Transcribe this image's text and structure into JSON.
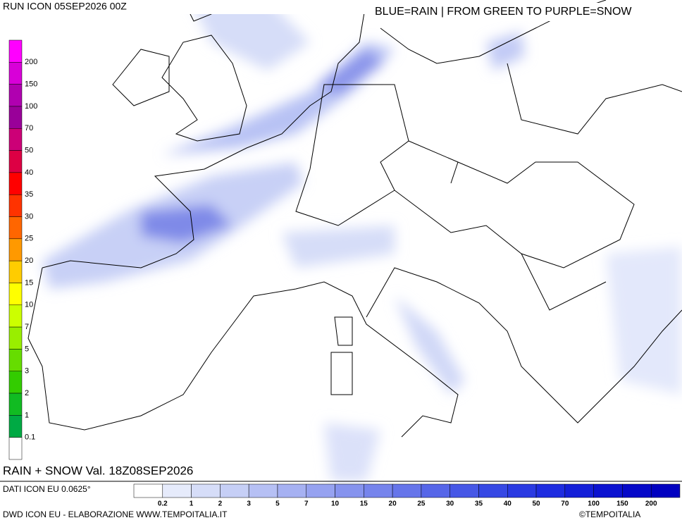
{
  "header": {
    "run": "RUN ICON 05SEP2026 00Z",
    "legend_title": "BLUE=RAIN | FROM GREEN TO PURPLE=SNOW"
  },
  "snow_scale": {
    "labels": [
      "200",
      "150",
      "100",
      "70",
      "50",
      "40",
      "35",
      "30",
      "25",
      "20",
      "15",
      "10",
      "7",
      "5",
      "3",
      "2",
      "1",
      "0.1"
    ],
    "colors": [
      "#ff00ff",
      "#d800d8",
      "#b000b0",
      "#990099",
      "#cc0077",
      "#dd0044",
      "#ff0000",
      "#ff3300",
      "#ff6600",
      "#ff9900",
      "#ffcc00",
      "#ffff00",
      "#ccff00",
      "#99ee00",
      "#66dd00",
      "#33cc00",
      "#11bb22",
      "#00aa44",
      "#ffffff"
    ]
  },
  "rain_scale": {
    "labels": [
      "0.2",
      "1",
      "2",
      "3",
      "5",
      "7",
      "10",
      "15",
      "20",
      "25",
      "30",
      "35",
      "40",
      "50",
      "70",
      "100",
      "150",
      "200"
    ],
    "colors": [
      "#ffffff",
      "#e6ebfb",
      "#d6ddf8",
      "#c6cff6",
      "#b6c0f4",
      "#a6b1f2",
      "#96a2f0",
      "#8693ee",
      "#7684ec",
      "#6675ea",
      "#5666e8",
      "#4657e6",
      "#3648e4",
      "#2a3ae2",
      "#1e2ce0",
      "#141fd8",
      "#0b12d0",
      "#0508c8",
      "#0000c0"
    ]
  },
  "footer": {
    "title": "RAIN + SNOW Val. 18Z08SEP2026",
    "data_source": "DATI ICON EU 0.0625°",
    "credit": "DWD ICON EU - ELABORAZIONE WWW.TEMPOITALIA.IT",
    "copyright": "©TEMPOITALIA"
  }
}
